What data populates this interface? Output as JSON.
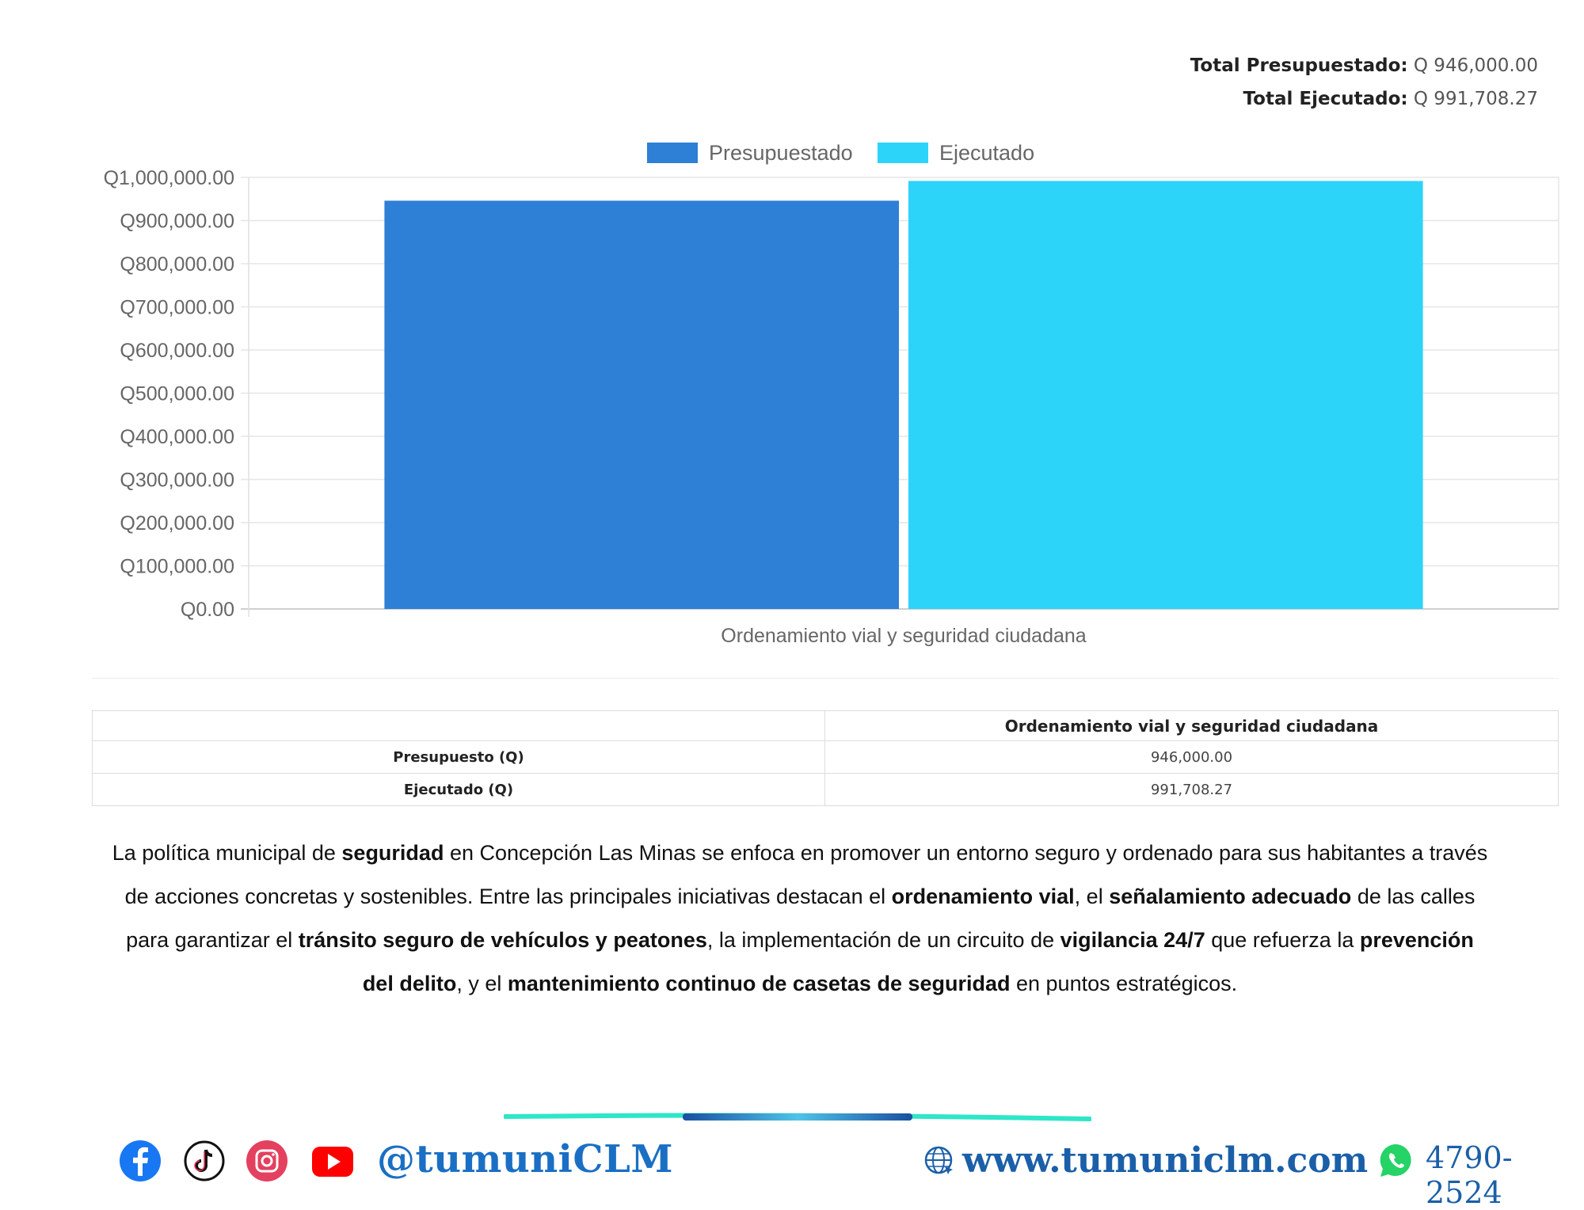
{
  "totals": {
    "presupuestado_label": "Total Presupuestado:",
    "presupuestado_value": "Q 946,000.00",
    "ejecutado_label": "Total Ejecutado:",
    "ejecutado_value": "Q 991,708.27"
  },
  "chart_data": {
    "type": "bar",
    "categories": [
      "Ordenamiento vial y seguridad ciudadana"
    ],
    "series": [
      {
        "name": "Presupuestado",
        "values": [
          946000.0
        ],
        "color": "#2e7fd6"
      },
      {
        "name": "Ejecutado",
        "values": [
          991708.27
        ],
        "color": "#2dd4fa"
      }
    ],
    "ylim": [
      0,
      1000000
    ],
    "yticks": [
      "Q0.00",
      "Q100,000.00",
      "Q200,000.00",
      "Q300,000.00",
      "Q400,000.00",
      "Q500,000.00",
      "Q600,000.00",
      "Q700,000.00",
      "Q800,000.00",
      "Q900,000.00",
      "Q1,000,000.00"
    ],
    "legend_position": "top",
    "grid": true
  },
  "table": {
    "header": [
      "",
      "Ordenamiento vial y seguridad ciudadana"
    ],
    "rows": [
      {
        "label": "Presupuesto (Q)",
        "value": "946,000.00"
      },
      {
        "label": "Ejecutado (Q)",
        "value": "991,708.27"
      }
    ]
  },
  "paragraph": {
    "p1": "La política municipal de ",
    "b1": "seguridad",
    "p2": " en Concepción Las Minas se enfoca en promover un entorno seguro y ordenado para sus habitantes a través de acciones concretas y sostenibles. Entre las principales iniciativas destacan el ",
    "b2": "ordenamiento vial",
    "p3": ", el ",
    "b3": "señalamiento adecuado",
    "p4": " de las calles para garantizar el ",
    "b4": "tránsito seguro de vehículos y peatones",
    "p5": ", la implementación de un circuito de ",
    "b5": "vigilancia 24/7",
    "p6": " que refuerza la ",
    "b6": "prevención del delito",
    "p7": ", y el ",
    "b7": "mantenimiento continuo de casetas de seguridad",
    "p8": " en puntos estratégicos."
  },
  "footer": {
    "handle": "@tumuniCLM",
    "website": "www.tumuniclm.com",
    "phone": "4790-2524",
    "icons": [
      "facebook-icon",
      "tiktok-icon",
      "instagram-icon",
      "youtube-icon",
      "globe-icon",
      "whatsapp-icon"
    ]
  }
}
